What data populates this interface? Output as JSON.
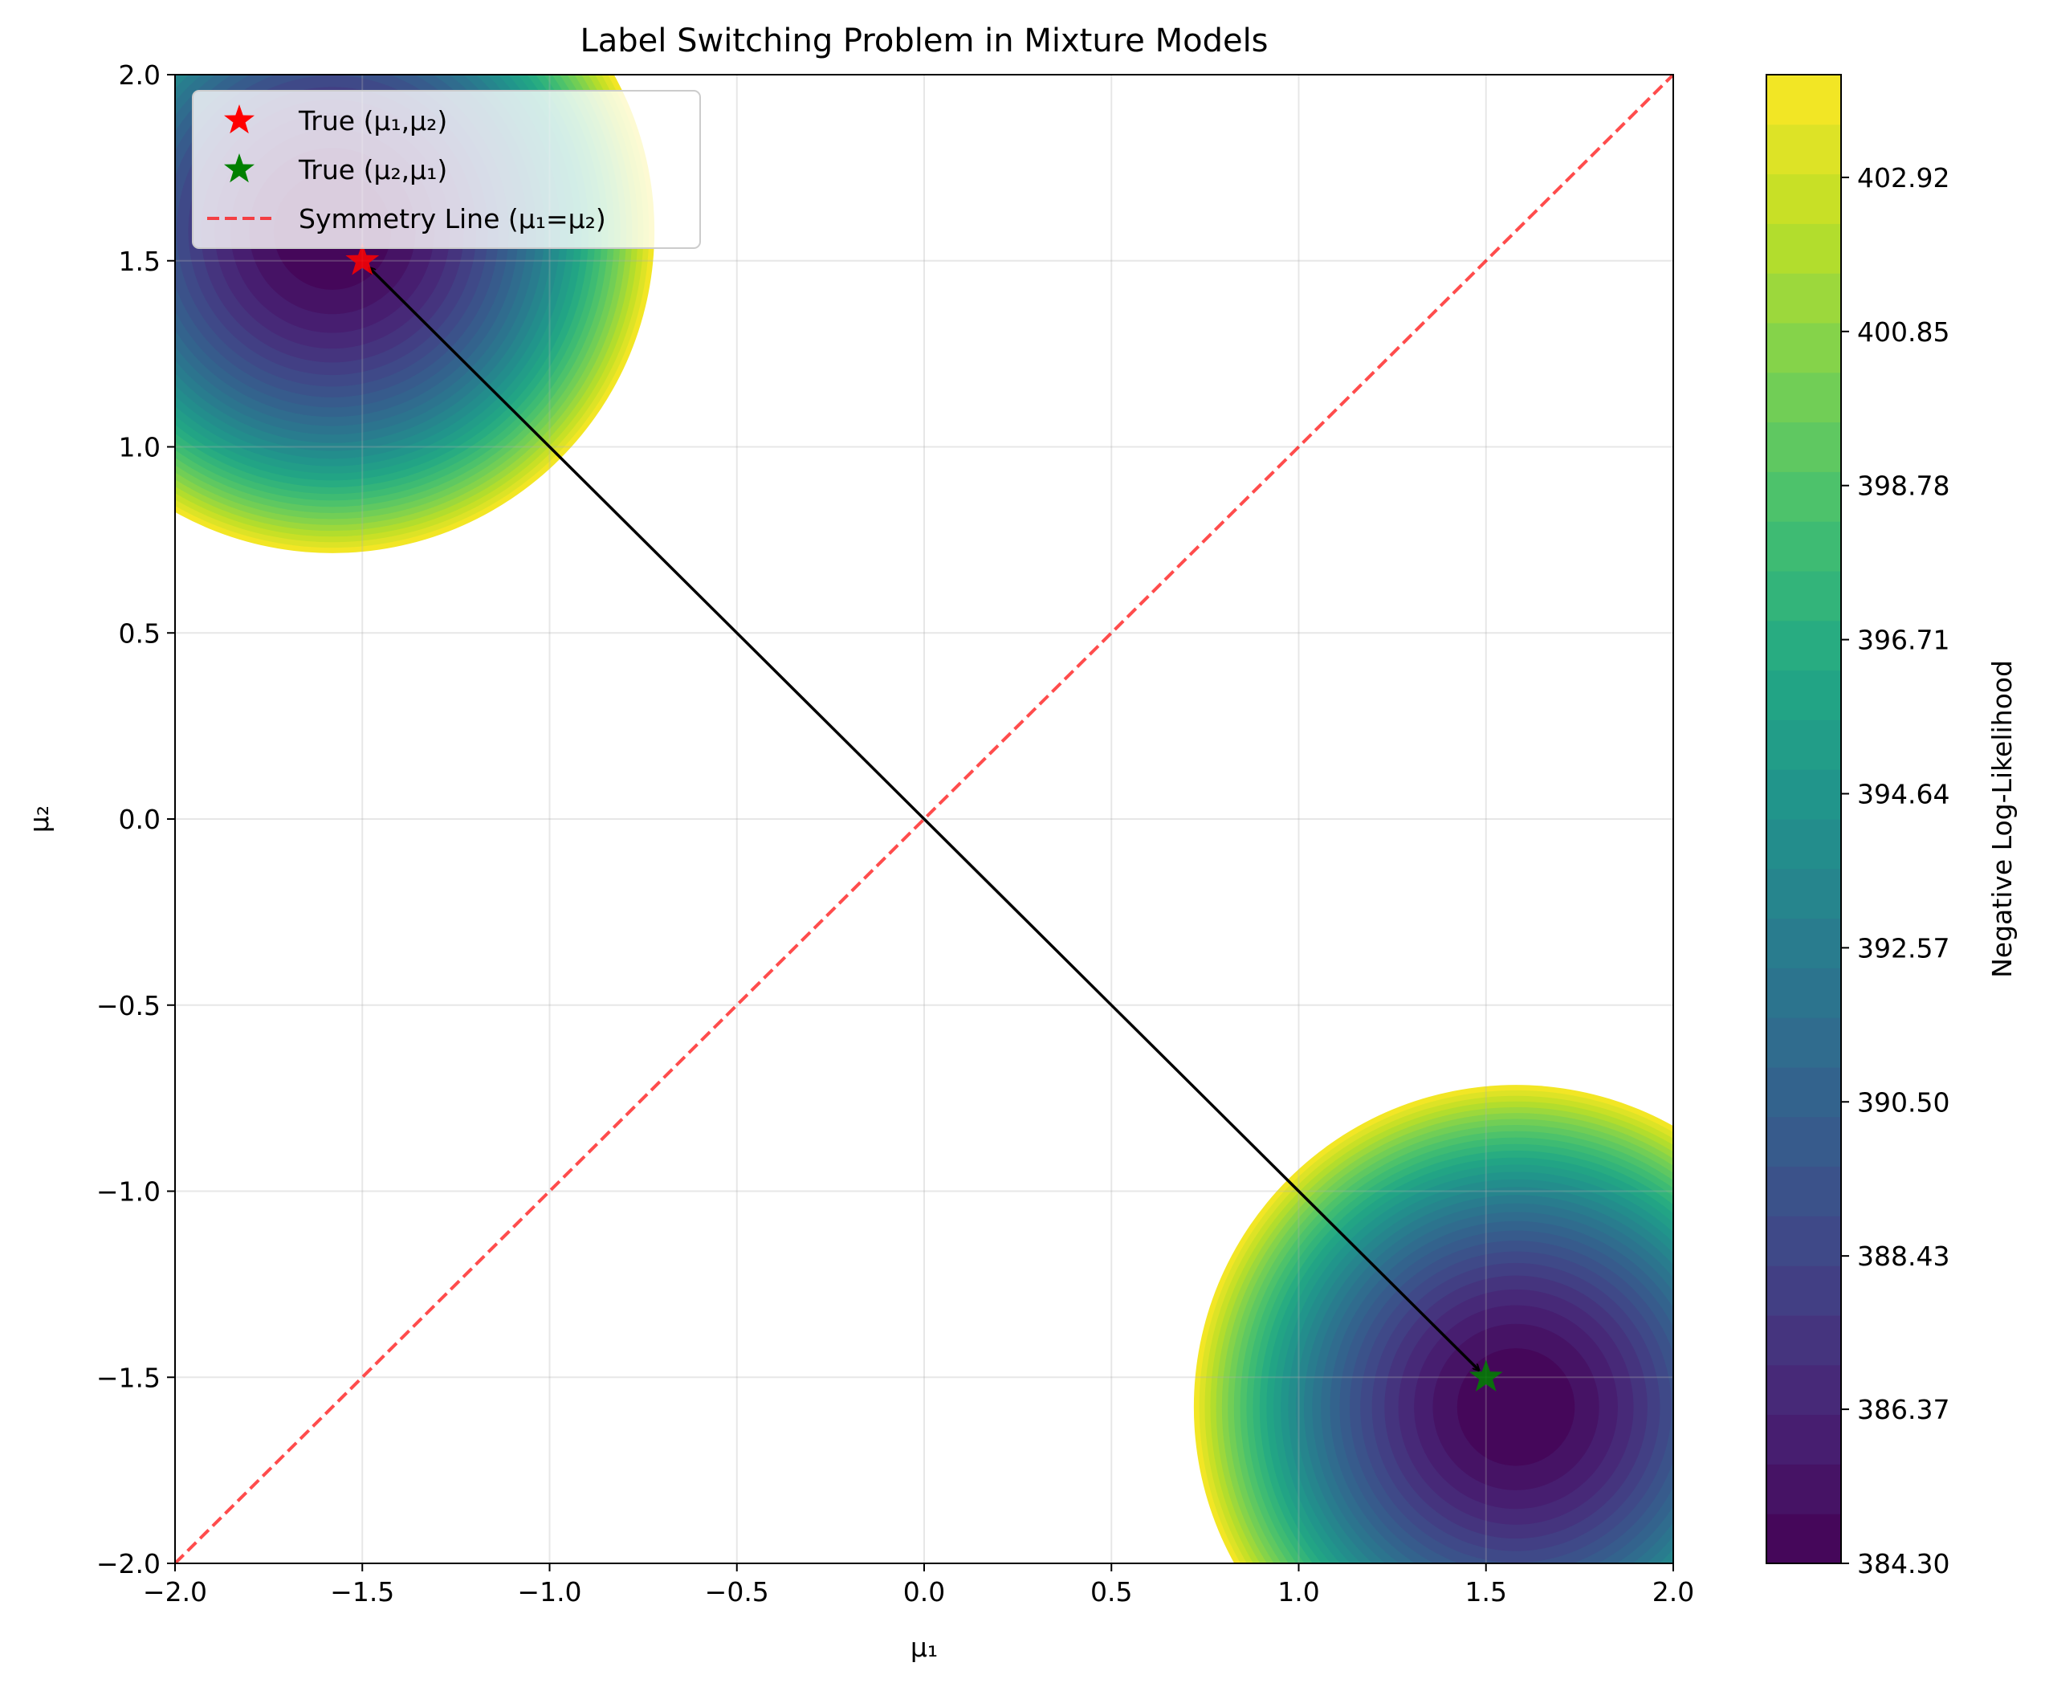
{
  "chart_data": {
    "type": "contour",
    "title": "Label Switching Problem in Mixture Models",
    "xlabel": "μ₁",
    "ylabel": "μ₂",
    "xlim": [
      -2.0,
      2.0
    ],
    "ylim": [
      -2.0,
      2.0
    ],
    "x_ticks": [
      "−2.0",
      "−1.5",
      "−1.0",
      "−0.5",
      "0.0",
      "0.5",
      "1.0",
      "1.5",
      "2.0"
    ],
    "y_ticks": [
      "−2.0",
      "−1.5",
      "−1.0",
      "−0.5",
      "0.0",
      "0.5",
      "1.0",
      "1.5",
      "2.0"
    ],
    "x_tick_values": [
      -2.0,
      -1.5,
      -1.0,
      -0.5,
      0.0,
      0.5,
      1.0,
      1.5,
      2.0
    ],
    "y_tick_values": [
      -2.0,
      -1.5,
      -1.0,
      -0.5,
      0.0,
      0.5,
      1.0,
      1.5,
      2.0
    ],
    "grid": true,
    "colormap": "viridis",
    "colorbar": {
      "label": "Negative Log-Likelihood",
      "min": 384.3,
      "max": 404.3,
      "levels": 30,
      "ticks": [
        "384.30",
        "386.37",
        "388.43",
        "390.50",
        "392.57",
        "394.64",
        "396.71",
        "398.78",
        "400.85",
        "402.92"
      ],
      "tick_values": [
        384.3,
        386.37,
        388.43,
        390.5,
        392.57,
        394.64,
        396.71,
        398.78,
        400.85,
        402.92
      ]
    },
    "basins": [
      {
        "center": [
          -1.58,
          1.58
        ],
        "radius": 0.86,
        "min_value": 384.3
      },
      {
        "center": [
          1.58,
          -1.58
        ],
        "radius": 0.86,
        "min_value": 384.3
      }
    ],
    "points": [
      {
        "name": "True (μ₁,μ₂)",
        "x": -1.5,
        "y": 1.5,
        "color": "#ff0000",
        "marker": "star"
      },
      {
        "name": "True (μ₂,μ₁)",
        "x": 1.5,
        "y": -1.5,
        "color": "#008000",
        "marker": "star"
      }
    ],
    "lines": [
      {
        "name": "Symmetry Line (μ₁=μ₂)",
        "x": [
          -2.0,
          2.0
        ],
        "y": [
          -2.0,
          2.0
        ],
        "color": "#ff0000",
        "style": "dashed",
        "alpha": 0.7
      }
    ],
    "annotations": [
      {
        "type": "double-arrow",
        "from": [
          -1.5,
          1.5
        ],
        "to": [
          1.5,
          -1.5
        ],
        "color": "#000000"
      }
    ],
    "legend": {
      "placement": "top-left",
      "entries": [
        "True (μ₁,μ₂)",
        "True (μ₂,μ₁)",
        "Symmetry Line (μ₁=μ₂)"
      ]
    }
  }
}
